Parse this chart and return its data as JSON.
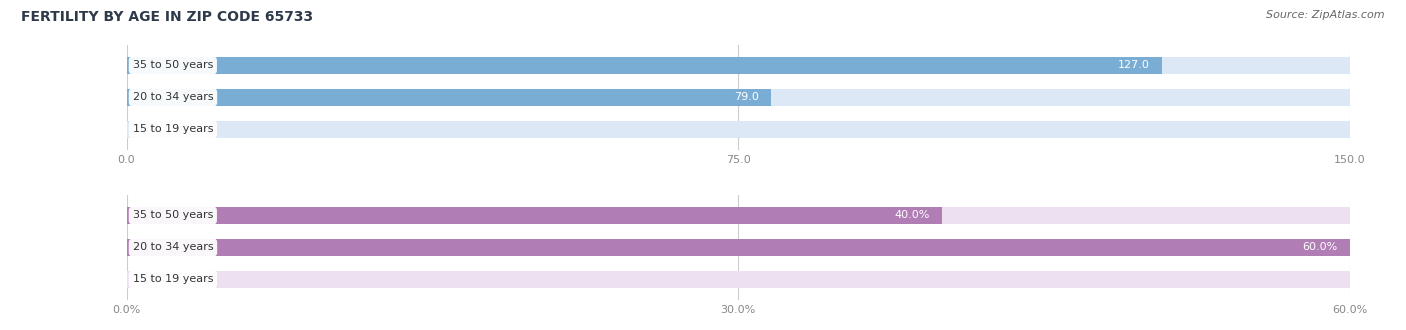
{
  "title": "FERTILITY BY AGE IN ZIP CODE 65733",
  "source": "Source: ZipAtlas.com",
  "chart1": {
    "categories": [
      "15 to 19 years",
      "20 to 34 years",
      "35 to 50 years"
    ],
    "values": [
      0.0,
      79.0,
      127.0
    ],
    "xlim": [
      0,
      150
    ],
    "xticks": [
      0.0,
      75.0,
      150.0
    ],
    "xtick_labels": [
      "0.0",
      "75.0",
      "150.0"
    ],
    "bar_color": "#7aadd4",
    "bar_bg_color": "#dce8f5",
    "label_color_inside": "#ffffff",
    "label_color_outside": "#555555",
    "show_pct": false
  },
  "chart2": {
    "categories": [
      "15 to 19 years",
      "20 to 34 years",
      "35 to 50 years"
    ],
    "values": [
      0.0,
      60.0,
      40.0
    ],
    "xlim": [
      0,
      60
    ],
    "xticks": [
      0.0,
      30.0,
      60.0
    ],
    "xtick_labels": [
      "0.0%",
      "30.0%",
      "60.0%"
    ],
    "bar_color": "#b07db5",
    "bar_bg_color": "#ede0f0",
    "label_color_inside": "#ffffff",
    "label_color_outside": "#555555",
    "show_pct": true
  },
  "title_fontsize": 10,
  "source_fontsize": 8,
  "label_fontsize": 8,
  "tick_fontsize": 8,
  "cat_fontsize": 8,
  "title_color": "#2e3a4a",
  "source_color": "#666666",
  "tick_color": "#888888",
  "cat_text_color": "#333333",
  "bg_color": "#ffffff",
  "bar_height": 0.52,
  "grid_color": "#cccccc"
}
